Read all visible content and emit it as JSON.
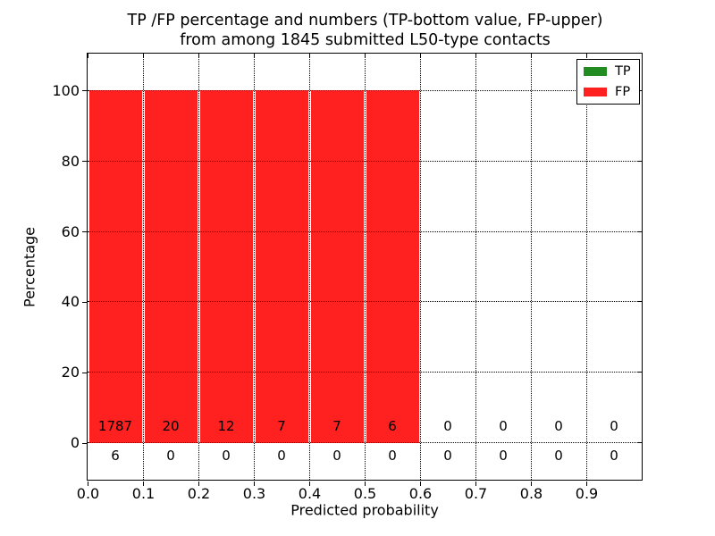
{
  "figure": {
    "title_line1": "TP /FP percentage and numbers (TP-bottom value, FP-upper)",
    "title_line2": "from among 1845 submitted L50-type contacts",
    "xlabel": "Predicted probability",
    "ylabel": "Percentage"
  },
  "legend": {
    "position": "upper right",
    "entries": [
      {
        "label": "TP",
        "color": "#228B22"
      },
      {
        "label": "FP",
        "color": "#FF2020"
      }
    ]
  },
  "chart_data": {
    "type": "bar",
    "subtype": "stacked-percentage-histogram",
    "title": "TP /FP percentage and numbers (TP-bottom value, FP-upper) from among 1845 submitted L50-type contacts",
    "xlabel": "Predicted probability",
    "ylabel": "Percentage",
    "total_contacts": 1845,
    "x_tick_labels": [
      "0.0",
      "0.1",
      "0.2",
      "0.3",
      "0.4",
      "0.5",
      "0.6",
      "0.7",
      "0.8",
      "0.9"
    ],
    "y_ticks": [
      0,
      20,
      40,
      60,
      80,
      100
    ],
    "xlim": [
      0.0,
      1.0
    ],
    "ylim": [
      -10.5,
      110.5
    ],
    "grid": "dotted",
    "legend_position": "upper right",
    "bin_width": 0.1,
    "bin_starts": [
      0.0,
      0.1,
      0.2,
      0.3,
      0.4,
      0.5,
      0.6,
      0.7,
      0.8,
      0.9
    ],
    "series": [
      {
        "name": "TP",
        "color": "#228B22",
        "counts": [
          6,
          0,
          0,
          0,
          0,
          0,
          0,
          0,
          0,
          0
        ],
        "percent": [
          0.33,
          0,
          0,
          0,
          0,
          0,
          0,
          0,
          0,
          0
        ]
      },
      {
        "name": "FP",
        "color": "#FF2020",
        "counts": [
          1787,
          20,
          12,
          7,
          7,
          6,
          0,
          0,
          0,
          0
        ],
        "percent": [
          99.67,
          100,
          100,
          100,
          100,
          100,
          0,
          0,
          0,
          0
        ]
      }
    ],
    "stacked_total_percent": [
      100,
      100,
      100,
      100,
      100,
      100,
      0,
      0,
      0,
      0
    ]
  }
}
